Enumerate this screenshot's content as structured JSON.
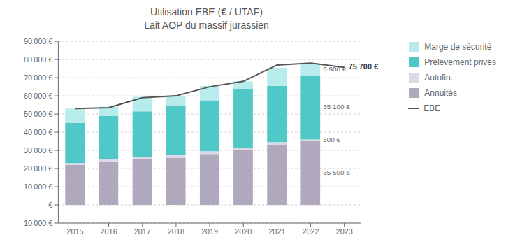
{
  "chart_data": {
    "type": "bar",
    "stacked": true,
    "grid": true,
    "legend": "right",
    "title": "Utilisation EBE (€ / UTAF)",
    "subtitle": "Lait AOP du massif jurassien",
    "categories": [
      "2015",
      "2016",
      "2017",
      "2018",
      "2019",
      "2020",
      "2021",
      "2022",
      "2023"
    ],
    "series": [
      {
        "name": "Annuités",
        "color": "#b0a8bc",
        "values": [
          22000,
          24000,
          25000,
          26000,
          28000,
          30000,
          33000,
          35500,
          null
        ]
      },
      {
        "name": "Autofin.",
        "color": "#ddd8e8",
        "values": [
          1000,
          1000,
          1500,
          1500,
          1500,
          1500,
          1500,
          500,
          null
        ]
      },
      {
        "name": "Prélèvement privés",
        "color": "#50c8c8",
        "values": [
          22000,
          24000,
          25000,
          27000,
          28000,
          32000,
          31000,
          35100,
          null
        ]
      },
      {
        "name": "Marge de sécurité",
        "color": "#b8ecec",
        "values": [
          8000,
          5000,
          8000,
          5500,
          8000,
          4500,
          10000,
          6900,
          null
        ]
      },
      {
        "name": "EBE",
        "type": "line",
        "color": "#555555",
        "values": [
          53000,
          53500,
          59000,
          60000,
          65000,
          68000,
          77000,
          78000,
          75700
        ]
      }
    ],
    "ylim": [
      -10000,
      90000
    ],
    "yticks": [
      {
        "value": -10000,
        "label": "-10 000 €"
      },
      {
        "value": 0,
        "label": "- €"
      },
      {
        "value": 10000,
        "label": "10 000 €"
      },
      {
        "value": 20000,
        "label": "20 000 €"
      },
      {
        "value": 30000,
        "label": "30 000 €"
      },
      {
        "value": 40000,
        "label": "40 000 €"
      },
      {
        "value": 50000,
        "label": "50 000 €"
      },
      {
        "value": 60000,
        "label": "60 000 €"
      },
      {
        "value": 70000,
        "label": "70 000 €"
      },
      {
        "value": 80000,
        "label": "80 000 €"
      },
      {
        "value": 90000,
        "label": "90 000 €"
      }
    ],
    "annotations": [
      {
        "text": "35 500 €",
        "category": "2022",
        "series": "Annuités"
      },
      {
        "text": "500 €",
        "category": "2022",
        "series": "Autofin."
      },
      {
        "text": "35 100 €",
        "category": "2022",
        "series": "Prélèvement privés"
      },
      {
        "text": "6 900 €",
        "category": "2022",
        "series": "Marge de sécurité"
      },
      {
        "text": "75 700 €",
        "category": "2023",
        "series": "EBE"
      }
    ]
  }
}
